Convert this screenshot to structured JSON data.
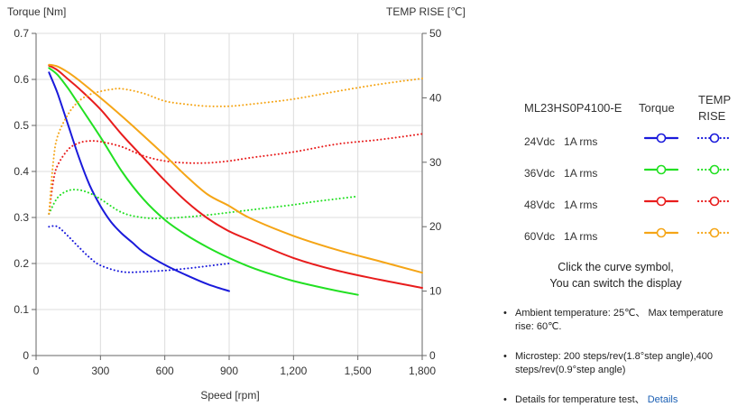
{
  "chart_data": {
    "type": "line",
    "x_unit_label": "Speed [rpm]",
    "y_left_label": "Torque  [Nm]",
    "y_right_label": "TEMP RISE [℃]",
    "xlim": [
      0,
      1800
    ],
    "ylim_left": [
      0,
      0.7
    ],
    "ylim_right": [
      0,
      50
    ],
    "x_ticks": [
      0,
      300,
      600,
      900,
      1200,
      1500,
      1800
    ],
    "x_tick_labels": [
      "0",
      "300",
      "600",
      "900",
      "1,200",
      "1,500",
      "1,800"
    ],
    "y_left_ticks": [
      0,
      0.1,
      0.2,
      0.3,
      0.4,
      0.5,
      0.6,
      0.7
    ],
    "y_left_tick_labels": [
      "0",
      "0.1",
      "0.2",
      "0.3",
      "0.4",
      "0.5",
      "0.6",
      "0.7"
    ],
    "y_right_ticks": [
      0,
      10,
      20,
      30,
      40,
      50
    ],
    "y_right_tick_labels": [
      "0",
      "10",
      "20",
      "30",
      "40",
      "50"
    ],
    "grid": true,
    "series": [
      {
        "name": "24Vdc 1A rms Torque",
        "axis": "left",
        "style": "solid",
        "color": "#1a1adb",
        "x": [
          60,
          100,
          150,
          200,
          250,
          300,
          350,
          400,
          450,
          500,
          600,
          700,
          800,
          900
        ],
        "y": [
          0.615,
          0.57,
          0.5,
          0.43,
          0.37,
          0.325,
          0.29,
          0.265,
          0.245,
          0.225,
          0.197,
          0.175,
          0.155,
          0.14
        ]
      },
      {
        "name": "24Vdc 1A rms TEMP RISE",
        "axis": "right",
        "style": "dotted",
        "color": "#1a1adb",
        "x": [
          60,
          100,
          150,
          200,
          250,
          300,
          400,
          500,
          600,
          700,
          800,
          900
        ],
        "y": [
          20,
          20,
          18.5,
          16.8,
          15.2,
          14,
          13,
          13,
          13.2,
          13.5,
          13.9,
          14.3
        ]
      },
      {
        "name": "36Vdc 1A rms Torque",
        "axis": "left",
        "style": "solid",
        "color": "#22e022",
        "x": [
          60,
          100,
          150,
          200,
          300,
          400,
          500,
          600,
          700,
          800,
          900,
          1000,
          1100,
          1200,
          1300,
          1400,
          1500
        ],
        "y": [
          0.625,
          0.61,
          0.58,
          0.545,
          0.475,
          0.4,
          0.34,
          0.295,
          0.262,
          0.235,
          0.212,
          0.192,
          0.176,
          0.162,
          0.151,
          0.141,
          0.132
        ]
      },
      {
        "name": "36Vdc 1A rms TEMP RISE",
        "axis": "right",
        "style": "dotted",
        "color": "#22e022",
        "x": [
          60,
          100,
          150,
          200,
          250,
          300,
          400,
          500,
          600,
          700,
          800,
          900,
          1000,
          1100,
          1200,
          1300,
          1400,
          1500
        ],
        "y": [
          22,
          24.5,
          25.6,
          25.7,
          25.2,
          24.3,
          22.2,
          21.4,
          21.3,
          21.5,
          21.8,
          22.2,
          22.6,
          23,
          23.4,
          23.9,
          24.3,
          24.7
        ]
      },
      {
        "name": "48Vdc 1A rms Torque",
        "axis": "left",
        "style": "solid",
        "color": "#e81c1c",
        "x": [
          60,
          100,
          150,
          200,
          300,
          400,
          500,
          600,
          700,
          800,
          900,
          1000,
          1200,
          1400,
          1600,
          1800
        ],
        "y": [
          0.63,
          0.62,
          0.6,
          0.58,
          0.535,
          0.48,
          0.43,
          0.38,
          0.335,
          0.298,
          0.27,
          0.25,
          0.212,
          0.185,
          0.165,
          0.147
        ]
      },
      {
        "name": "48Vdc 1A rms TEMP RISE",
        "axis": "right",
        "style": "dotted",
        "color": "#e81c1c",
        "x": [
          60,
          80,
          100,
          150,
          200,
          250,
          300,
          400,
          500,
          600,
          700,
          800,
          900,
          1000,
          1200,
          1400,
          1600,
          1800
        ],
        "y": [
          22,
          27,
          29.5,
          32,
          33,
          33.3,
          33.2,
          32.4,
          31,
          30.2,
          29.9,
          29.9,
          30.2,
          30.7,
          31.6,
          32.8,
          33.5,
          34.4
        ]
      },
      {
        "name": "60Vdc 1A rms Torque",
        "axis": "left",
        "style": "solid",
        "color": "#f5a516",
        "x": [
          60,
          100,
          150,
          200,
          300,
          400,
          500,
          600,
          700,
          800,
          900,
          1000,
          1200,
          1400,
          1600,
          1800
        ],
        "y": [
          0.632,
          0.628,
          0.615,
          0.598,
          0.56,
          0.52,
          0.478,
          0.435,
          0.39,
          0.35,
          0.325,
          0.298,
          0.26,
          0.23,
          0.205,
          0.18
        ]
      },
      {
        "name": "60Vdc 1A rms TEMP RISE",
        "axis": "right",
        "style": "dotted",
        "color": "#f5a516",
        "x": [
          60,
          80,
          100,
          150,
          200,
          250,
          300,
          350,
          400,
          500,
          600,
          700,
          800,
          900,
          1000,
          1200,
          1400,
          1600,
          1800
        ],
        "y": [
          22,
          30,
          34,
          37.5,
          39.5,
          40.5,
          41,
          41.3,
          41.4,
          40.7,
          39.5,
          39,
          38.7,
          38.7,
          39,
          39.8,
          41,
          42.1,
          43
        ]
      }
    ]
  },
  "legend": {
    "model": "ML23HS0P4100-E",
    "col_torque": "Torque",
    "col_temp_line1": "TEMP",
    "col_temp_line2": "RISE",
    "rows": [
      {
        "label": "24Vdc   1A rms",
        "color": "#1a1adb"
      },
      {
        "label": "36Vdc   1A rms",
        "color": "#22e022"
      },
      {
        "label": "48Vdc   1A rms",
        "color": "#e81c1c"
      },
      {
        "label": "60Vdc   1A rms",
        "color": "#f5a516"
      }
    ]
  },
  "hint": {
    "line1": "Click the curve symbol,",
    "line2": "You can switch the display"
  },
  "notes": {
    "ambient": "Ambient temperature: 25℃、 Max temperature rise: 60℃.",
    "microstep": "Microstep: 200 steps/rev(1.8°step angle),400 steps/rev(0.9°step angle)",
    "details_prefix": "Details for temperature test、",
    "details_link": "Details"
  }
}
